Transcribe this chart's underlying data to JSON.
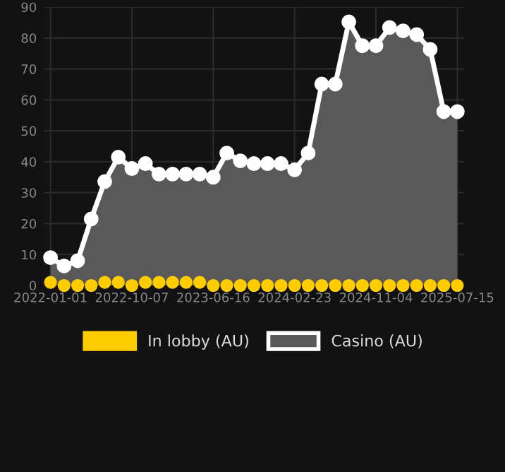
{
  "chart_data": {
    "type": "area",
    "categories": [
      "2022-01-01",
      null,
      null,
      null,
      null,
      null,
      "2022-10-07",
      null,
      null,
      null,
      null,
      null,
      "2023-06-16",
      null,
      null,
      null,
      null,
      null,
      "2024-02-23",
      null,
      null,
      null,
      null,
      null,
      "2024-11-04",
      null,
      null,
      null,
      null,
      null,
      "2025-07-15"
    ],
    "series": [
      {
        "name": "In lobby (AU)",
        "type": "scatter",
        "color": "#ffcc00",
        "values": [
          1,
          0,
          0,
          0,
          1,
          1,
          0,
          1,
          1,
          1,
          1,
          1,
          0,
          0,
          0,
          0,
          0,
          0,
          0,
          0,
          0,
          0,
          0,
          0,
          0,
          0,
          0,
          0,
          0,
          0,
          0
        ]
      },
      {
        "name": "Casino (AU)",
        "color": "#ffffff",
        "values": [
          9,
          6.3,
          8,
          21.5,
          33.6,
          41.5,
          37.8,
          39.4,
          36,
          36,
          36,
          36,
          35,
          42.8,
          40.3,
          39.4,
          39.4,
          39.4,
          37.4,
          42.8,
          65.1,
          65.1,
          85.2,
          77.5,
          77.5,
          83.4,
          82.3,
          81.1,
          76.3,
          56.2,
          56.2
        ]
      }
    ],
    "ylim": [
      0,
      90
    ],
    "yticks": [
      0,
      10,
      20,
      30,
      40,
      50,
      60,
      70,
      80,
      90
    ],
    "grid": true,
    "legend": "bottom",
    "marker": "circle",
    "line_style": "solid"
  }
}
